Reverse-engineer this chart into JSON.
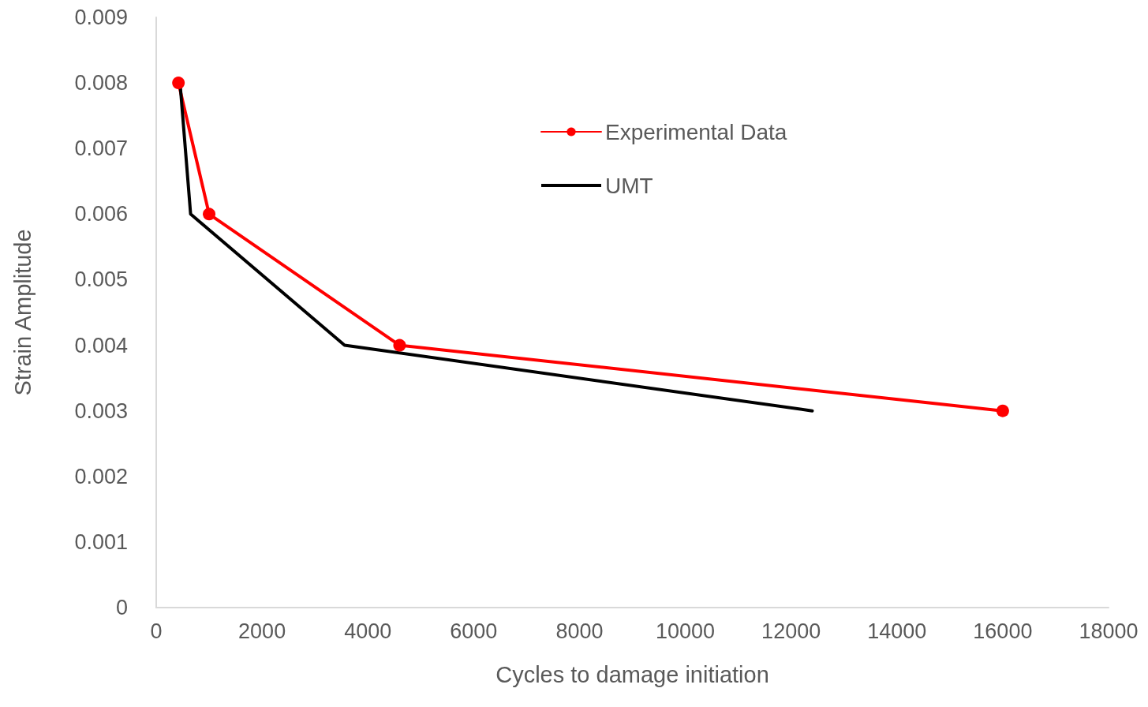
{
  "chart_data": {
    "type": "line",
    "xlabel": "Cycles to damage initiation",
    "ylabel": "Strain Amplitude",
    "xlim": [
      0,
      18000
    ],
    "xticks": [
      0,
      2000,
      4000,
      6000,
      8000,
      10000,
      12000,
      14000,
      16000,
      18000
    ],
    "ylim": [
      0,
      0.009
    ],
    "yticks": [
      0,
      0.001,
      0.002,
      0.003,
      0.004,
      0.005,
      0.006,
      0.007,
      0.008,
      0.009
    ],
    "grid": false,
    "legend": "top",
    "line_style": "solid",
    "series": [
      {
        "name": "Experimental Data",
        "color": "#ff0000",
        "marker": "circle",
        "x": [
          420,
          1000,
          4600,
          16000
        ],
        "values": [
          0.008,
          0.006,
          0.004,
          0.003
        ]
      },
      {
        "name": "UMT",
        "color": "#000000",
        "marker": "none",
        "x": [
          450,
          650,
          3560,
          12400
        ],
        "values": [
          0.008,
          0.006,
          0.004,
          0.003
        ]
      }
    ]
  }
}
